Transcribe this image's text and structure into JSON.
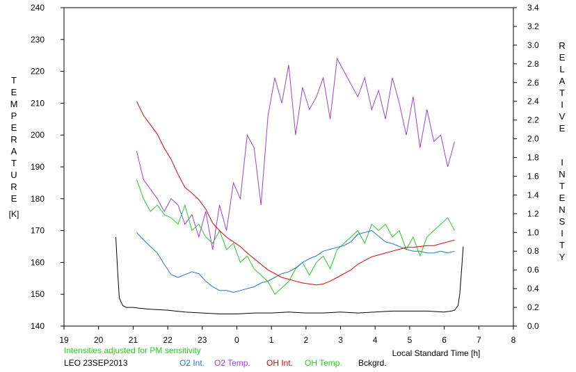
{
  "chart_data": {
    "type": "line",
    "y_left_label": "TEMPERATURE",
    "y_left_unit": "[K]",
    "y_right_label": "RELATIVE INTENSITY",
    "xlabel": "Local Standard Time [h]",
    "note": "Intensities adjusted for PM sensitivity",
    "station_date": "LEO 23SEP2013",
    "x_ticks": [
      "19",
      "20",
      "21",
      "22",
      "23",
      "0",
      "1",
      "2",
      "3",
      "4",
      "5",
      "6",
      "7",
      "8"
    ],
    "y_left_ticks": [
      "140",
      "150",
      "160",
      "170",
      "180",
      "190",
      "200",
      "210",
      "220",
      "230",
      "240"
    ],
    "y_right_ticks": [
      "0.0",
      "0.2",
      "0.4",
      "0.6",
      "0.8",
      "1.0",
      "1.2",
      "1.4",
      "1.6",
      "1.8",
      "2.0",
      "2.2",
      "2.4",
      "2.6",
      "2.8",
      "3.0",
      "3.2",
      "3.4"
    ],
    "xlim": [
      19,
      32
    ],
    "ylim_left": [
      140,
      240
    ],
    "ylim_right": [
      0,
      3.4
    ],
    "colors": {
      "o2_int": "#1f77d4",
      "o2_temp": "#9b3fd6",
      "oh_int": "#e00000",
      "oh_temp": "#22cc22",
      "bckgrd": "#000000",
      "note": "#22cc22"
    },
    "series": [
      {
        "name": "O2 Int.",
        "axis": "right",
        "x": [
          21.1,
          21.3,
          21.5,
          21.7,
          21.9,
          22.1,
          22.3,
          22.5,
          22.7,
          22.9,
          23.1,
          23.3,
          23.5,
          23.7,
          23.9,
          24.1,
          24.3,
          24.5,
          24.7,
          24.9,
          25.1,
          25.3,
          25.5,
          25.7,
          25.9,
          26.1,
          26.3,
          26.5,
          26.7,
          26.9,
          27.1,
          27.3,
          27.5,
          27.7,
          27.9,
          28.1,
          28.3,
          28.5,
          28.7,
          28.9,
          29.1,
          29.3,
          29.5,
          29.7,
          29.9,
          30.1,
          30.3
        ],
        "y": [
          1.0,
          0.92,
          0.85,
          0.78,
          0.66,
          0.55,
          0.52,
          0.55,
          0.58,
          0.56,
          0.48,
          0.42,
          0.38,
          0.38,
          0.36,
          0.38,
          0.4,
          0.42,
          0.46,
          0.48,
          0.52,
          0.56,
          0.58,
          0.62,
          0.68,
          0.72,
          0.75,
          0.8,
          0.82,
          0.84,
          0.86,
          0.9,
          0.98,
          1.0,
          1.02,
          0.96,
          0.9,
          0.88,
          0.85,
          0.82,
          0.8,
          0.8,
          0.78,
          0.78,
          0.8,
          0.78,
          0.8
        ]
      },
      {
        "name": "O2 Temp.",
        "axis": "left",
        "x": [
          21.1,
          21.3,
          21.5,
          21.7,
          21.9,
          22.1,
          22.3,
          22.5,
          22.7,
          22.9,
          23.1,
          23.3,
          23.5,
          23.7,
          23.9,
          24.1,
          24.3,
          24.5,
          24.7,
          24.9,
          25.1,
          25.3,
          25.5,
          25.7,
          25.9,
          26.1,
          26.3,
          26.5,
          26.7,
          26.9,
          27.1,
          27.3,
          27.5,
          27.7,
          27.9,
          28.1,
          28.3,
          28.5,
          28.7,
          28.9,
          29.1,
          29.3,
          29.5,
          29.7,
          29.9,
          30.1,
          30.3
        ],
        "y": [
          195,
          186,
          183,
          180,
          176,
          180,
          178,
          172,
          175,
          168,
          176,
          164,
          178,
          170,
          185,
          180,
          200,
          196,
          178,
          206,
          218,
          210,
          222,
          200,
          215,
          208,
          212,
          218,
          205,
          224,
          220,
          216,
          212,
          218,
          208,
          214,
          205,
          218,
          210,
          200,
          212,
          196,
          208,
          198,
          200,
          190,
          198
        ]
      },
      {
        "name": "OH Int.",
        "axis": "right",
        "x": [
          21.1,
          21.3,
          21.5,
          21.7,
          21.9,
          22.1,
          22.3,
          22.5,
          22.7,
          22.9,
          23.1,
          23.3,
          23.5,
          23.7,
          23.9,
          24.1,
          24.3,
          24.5,
          24.7,
          24.9,
          25.1,
          25.3,
          25.5,
          25.7,
          25.9,
          26.1,
          26.3,
          26.5,
          26.7,
          26.9,
          27.1,
          27.3,
          27.5,
          27.7,
          27.9,
          28.1,
          28.3,
          28.5,
          28.7,
          28.9,
          29.1,
          29.3,
          29.5,
          29.7,
          29.9,
          30.1,
          30.3
        ],
        "y": [
          2.4,
          2.25,
          2.15,
          2.05,
          1.9,
          1.78,
          1.62,
          1.48,
          1.42,
          1.35,
          1.25,
          1.1,
          1.02,
          0.95,
          0.9,
          0.85,
          0.78,
          0.72,
          0.66,
          0.6,
          0.56,
          0.52,
          0.5,
          0.48,
          0.46,
          0.45,
          0.44,
          0.45,
          0.48,
          0.52,
          0.56,
          0.6,
          0.66,
          0.7,
          0.74,
          0.76,
          0.78,
          0.8,
          0.82,
          0.84,
          0.84,
          0.85,
          0.86,
          0.86,
          0.88,
          0.9,
          0.92
        ]
      },
      {
        "name": "OH Temp.",
        "axis": "left",
        "x": [
          21.1,
          21.3,
          21.5,
          21.7,
          21.9,
          22.1,
          22.3,
          22.5,
          22.7,
          22.9,
          23.1,
          23.3,
          23.5,
          23.7,
          23.9,
          24.1,
          24.3,
          24.5,
          24.7,
          24.9,
          25.1,
          25.3,
          25.5,
          25.7,
          25.9,
          26.1,
          26.3,
          26.5,
          26.7,
          26.9,
          27.1,
          27.3,
          27.5,
          27.7,
          27.9,
          28.1,
          28.3,
          28.5,
          28.7,
          28.9,
          29.1,
          29.3,
          29.5,
          29.7,
          29.9,
          30.1,
          30.3
        ],
        "y": [
          186,
          180,
          176,
          178,
          175,
          174,
          172,
          178,
          170,
          172,
          168,
          166,
          170,
          164,
          166,
          160,
          162,
          158,
          156,
          154,
          150,
          152,
          154,
          158,
          160,
          156,
          160,
          162,
          158,
          164,
          166,
          168,
          170,
          166,
          172,
          170,
          172,
          168,
          170,
          164,
          168,
          162,
          168,
          170,
          172,
          174,
          170
        ]
      },
      {
        "name": "Bckgrd.",
        "axis": "right",
        "x": [
          20.5,
          20.55,
          20.6,
          20.7,
          20.8,
          21.0,
          21.2,
          21.5,
          22.0,
          22.5,
          23.0,
          23.5,
          24.0,
          24.5,
          25.0,
          25.5,
          26.0,
          26.5,
          27.0,
          27.5,
          28.0,
          28.5,
          29.0,
          29.5,
          30.0,
          30.2,
          30.3,
          30.4,
          30.45,
          30.5,
          30.55
        ],
        "y": [
          0.95,
          0.6,
          0.3,
          0.22,
          0.2,
          0.2,
          0.19,
          0.18,
          0.17,
          0.15,
          0.14,
          0.13,
          0.13,
          0.14,
          0.14,
          0.15,
          0.14,
          0.14,
          0.15,
          0.14,
          0.15,
          0.16,
          0.16,
          0.16,
          0.15,
          0.16,
          0.17,
          0.22,
          0.35,
          0.6,
          0.85
        ]
      }
    ]
  },
  "legend": {
    "note": "Intensities adjusted for PM sensitivity",
    "station_date": "LEO 23SEP2013",
    "items": [
      "O2 Int.",
      "O2 Temp.",
      "OH Int.",
      "OH Temp.",
      "Bckgrd."
    ]
  }
}
